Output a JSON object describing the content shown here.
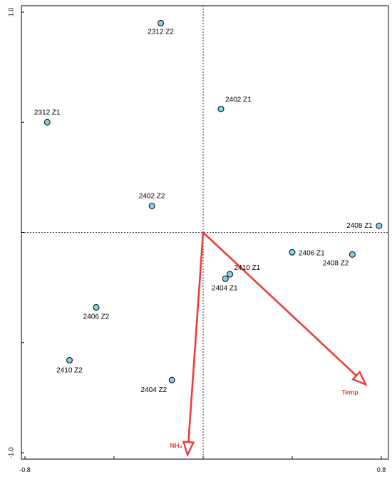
{
  "chart_data": {
    "type": "scatter",
    "title": "",
    "xlabel": "",
    "ylabel": "",
    "xlim": [
      -0.8,
      0.8
    ],
    "ylim": [
      -1.0,
      1.0
    ],
    "x_ticks": [
      -0.8,
      0.8
    ],
    "x_tick_labels": [
      "-0.8",
      "0.8"
    ],
    "y_ticks": [
      1.0,
      -1.0
    ],
    "y_tick_labels": [
      "1.0",
      "-1.0"
    ],
    "grid": false,
    "reference_lines": {
      "x": 0,
      "y": 0,
      "style": "dashed"
    },
    "point_color": "#7fd3e6",
    "arrow_color": "#ee3b3b",
    "points": [
      {
        "label": "2312 Z2",
        "x": -0.19,
        "y": 0.95
      },
      {
        "label": "2312 Z1",
        "x": -0.7,
        "y": 0.5
      },
      {
        "label": "2402 Z1",
        "x": 0.08,
        "y": 0.56
      },
      {
        "label": "2402 Z2",
        "x": -0.23,
        "y": 0.12
      },
      {
        "label": "2408 Z1",
        "x": 0.79,
        "y": 0.03
      },
      {
        "label": "2406 Z1",
        "x": 0.4,
        "y": -0.09
      },
      {
        "label": "2408 Z2",
        "x": 0.67,
        "y": -0.1
      },
      {
        "label": "2410 Z1",
        "x": 0.12,
        "y": -0.19
      },
      {
        "label": "2404 Z1",
        "x": 0.1,
        "y": -0.21
      },
      {
        "label": "2406 Z2",
        "x": -0.48,
        "y": -0.34
      },
      {
        "label": "2410 Z2",
        "x": -0.6,
        "y": -0.58
      },
      {
        "label": "2404 Z2",
        "x": -0.14,
        "y": -0.67
      }
    ],
    "arrows": [
      {
        "label": "Temp",
        "x": 0.73,
        "y": -0.69
      },
      {
        "label": "NH₄",
        "x": -0.07,
        "y": -1.01
      }
    ]
  }
}
